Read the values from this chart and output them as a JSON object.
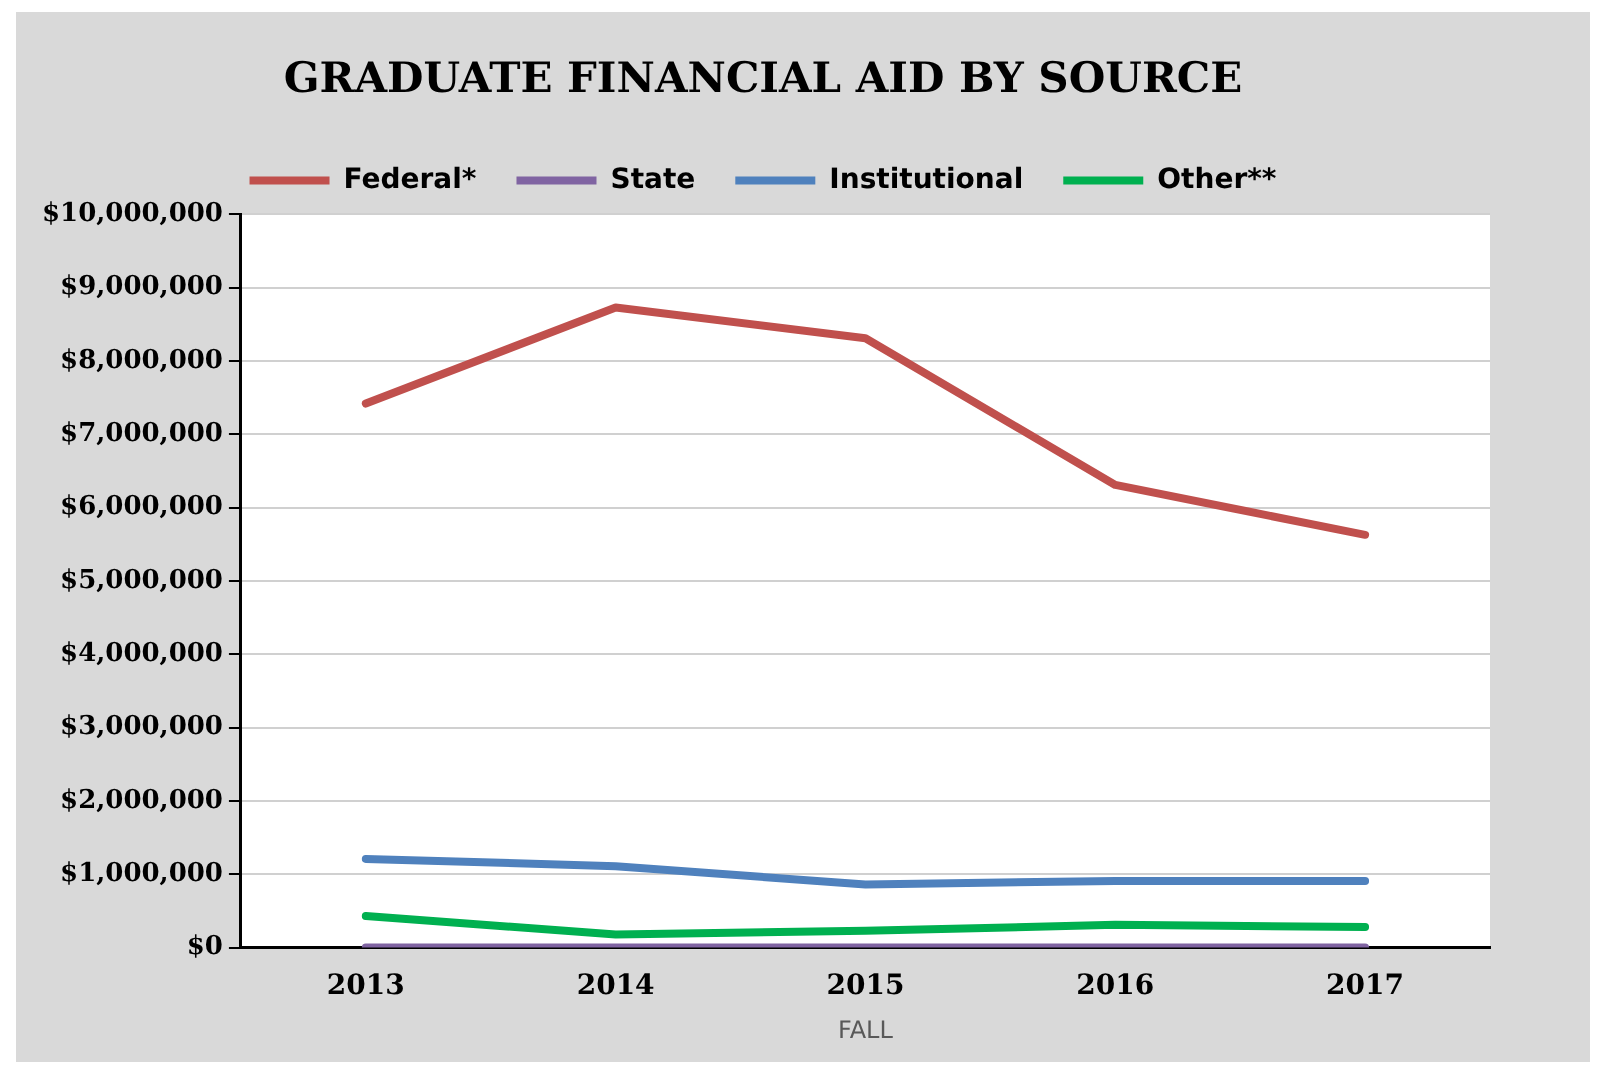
{
  "chart_data": {
    "type": "line",
    "title": "GRADUATE FINANCIAL AID BY SOURCE",
    "xlabel": "FALL",
    "categories": [
      "2013",
      "2014",
      "2015",
      "2016",
      "2017"
    ],
    "series": [
      {
        "name": "Federal*",
        "color": "#c0504d",
        "values": [
          7420000,
          8730000,
          8310000,
          6310000,
          5630000
        ]
      },
      {
        "name": "State",
        "color": "#8064a2",
        "values": [
          0,
          0,
          0,
          0,
          0
        ]
      },
      {
        "name": "Institutional",
        "color": "#4f81bd",
        "values": [
          1210000,
          1110000,
          860000,
          910000,
          910000
        ]
      },
      {
        "name": "Other**",
        "color": "#00b050",
        "values": [
          430000,
          180000,
          230000,
          310000,
          280000
        ]
      }
    ],
    "ylim": [
      0,
      10000000
    ],
    "yticks": [
      {
        "value": 0,
        "label": "$0"
      },
      {
        "value": 1000000,
        "label": "$1,000,000"
      },
      {
        "value": 2000000,
        "label": "$2,000,000"
      },
      {
        "value": 3000000,
        "label": "$3,000,000"
      },
      {
        "value": 4000000,
        "label": "$4,000,000"
      },
      {
        "value": 5000000,
        "label": "$5,000,000"
      },
      {
        "value": 6000000,
        "label": "$6,000,000"
      },
      {
        "value": 7000000,
        "label": "$7,000,000"
      },
      {
        "value": 8000000,
        "label": "$8,000,000"
      },
      {
        "value": 9000000,
        "label": "$9,000,000"
      },
      {
        "value": 10000000,
        "label": "$10,000,000"
      }
    ],
    "grid": "y",
    "legend": "top",
    "marker": "none",
    "line_style": "solid"
  }
}
